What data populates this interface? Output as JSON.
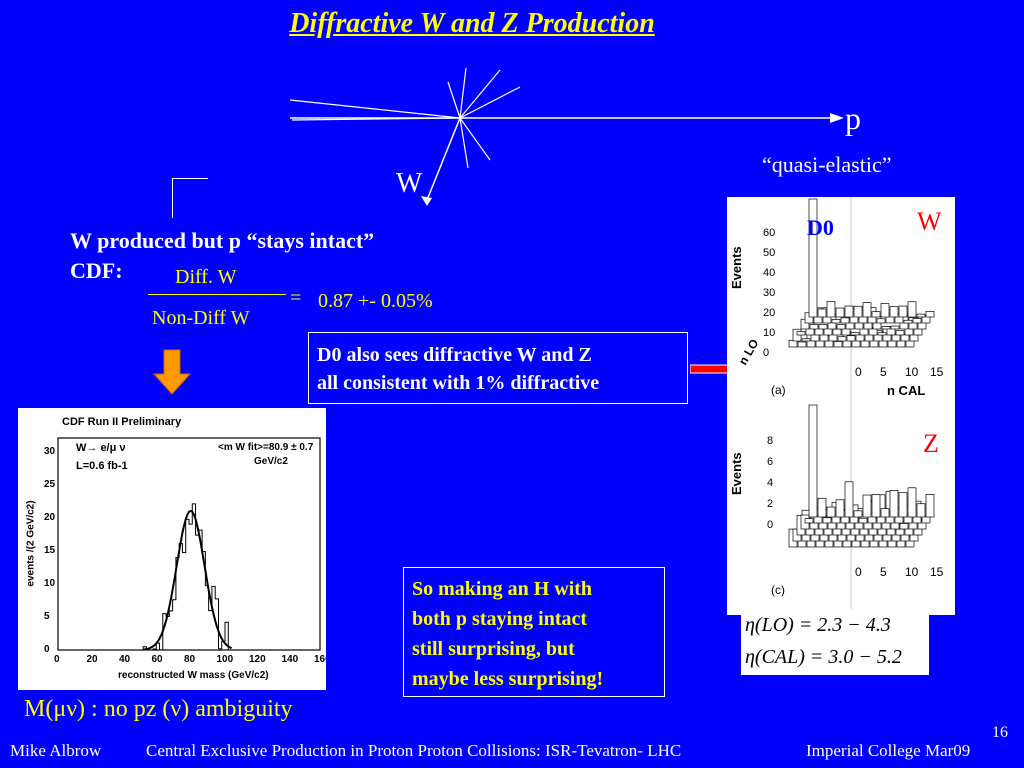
{
  "slide": {
    "title": "Diffractive W and Z Production",
    "diagram": {
      "p_label": "p",
      "quasi_label": "“quasi-elastic”",
      "w_label": "W"
    },
    "text": {
      "line1": "W produced but p “stays intact”",
      "line2": "CDF:"
    },
    "fraction": {
      "numerator": "Diff. W",
      "denominator": "Non-Diff  W",
      "equals": "=",
      "value": "0.87 +- 0.05%"
    },
    "box_d0": {
      "line1": "D0 also sees diffractive W and Z",
      "line2": "all consistent with 1% diffractive"
    },
    "box_h": {
      "line1": "So making an H with",
      "line2": "both p staying intact",
      "line3": "still surprising, but",
      "line4": "maybe less surprising!"
    },
    "cdf_plot": {
      "title": "CDF Run II Preliminary",
      "decay": "W→ e/μ ν",
      "lumi": "L=0.6 fb-1",
      "fit": "<m W fit>=80.9 ± 0.7",
      "fit_unit": "GeV/c2",
      "ylabel": "events /(2 GeV/c2)",
      "xlabel": "reconstructed W mass (GeV/c2)",
      "x_ticks": [
        "0",
        "20",
        "40",
        "60",
        "80",
        "100",
        "120",
        "140",
        "160"
      ],
      "y_ticks": [
        "0",
        "5",
        "10",
        "15",
        "20",
        "25",
        "30"
      ]
    },
    "d0_plot": {
      "label": "D0",
      "w_label": "W",
      "z_label": "Z",
      "events": "Events",
      "a_label": "(a)",
      "c_label": "(c)",
      "n_lo": "n LO",
      "n_cal": "n CAL",
      "y_ticks_top": [
        "0",
        "10",
        "20",
        "30",
        "40",
        "50",
        "60"
      ],
      "y_ticks_bottom": [
        "0",
        "2",
        "4",
        "6",
        "8"
      ],
      "cal_ticks": [
        "0",
        "5",
        "10",
        "15"
      ]
    },
    "eta": {
      "lo": "η(LO) = 2.3 − 4.3",
      "cal": "η(CAL) = 3.0 − 5.2"
    },
    "mass_ambiguity": "M(μν) : no  pz (ν) ambiguity",
    "footer": {
      "author": "Mike Albrow",
      "talk": "Central Exclusive Production in Proton Proton Collisions: ISR-Tevatron- LHC",
      "venue": "Imperial College Mar09",
      "page": "16"
    },
    "colors": {
      "background": "#0000ff",
      "accent": "#ffff00",
      "arrow": "#ff0000",
      "down_arrow": "#ff9900"
    }
  }
}
